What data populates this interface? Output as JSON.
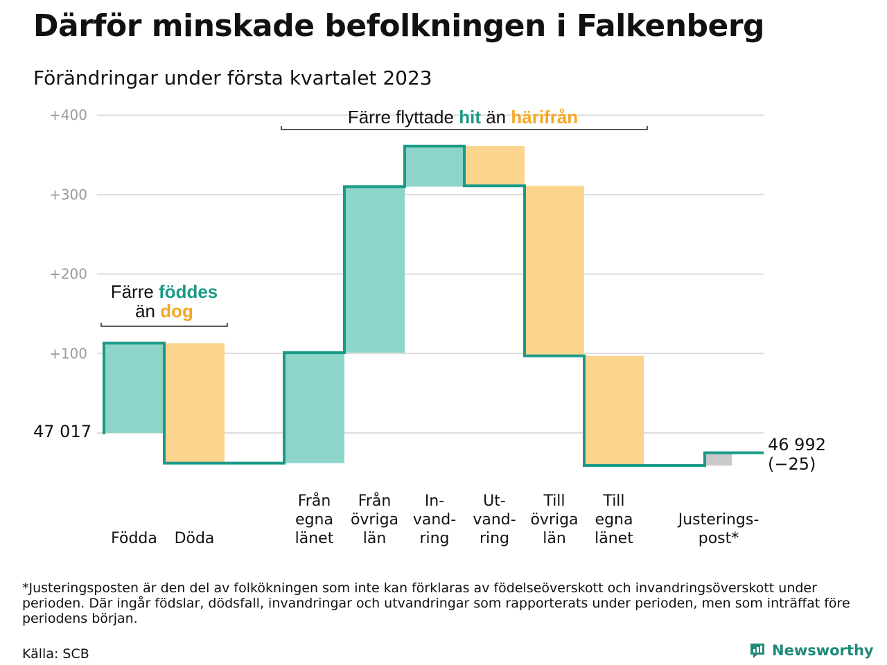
{
  "title": "Därför minskade befolkningen i Falkenberg",
  "subtitle": "Förändringar under första kvartalet 2023",
  "colors": {
    "teal": "#1a9a86",
    "teal_light": "#8dd5cb",
    "orange": "#f5a623",
    "orange_light": "#fbd58d",
    "gray": "#c9c9c9",
    "grid": "#dddddd"
  },
  "chart_data": {
    "type": "waterfall",
    "title": "Därför minskade befolkningen i Falkenberg",
    "subtitle": "Förändringar under första kvartalet 2023",
    "base_value": 47017,
    "ylim": [
      -70,
      410
    ],
    "yticks": [
      {
        "value": 100,
        "label": "+100"
      },
      {
        "value": 200,
        "label": "+200"
      },
      {
        "value": 300,
        "label": "+300"
      },
      {
        "value": 400,
        "label": "+400"
      }
    ],
    "start_label": "47 017",
    "end_label_line1": "46 992",
    "end_label_line2": "(−25)",
    "end_value": 46992,
    "net_change": -25,
    "steps": [
      {
        "name": "Födda",
        "lines": [
          "Födda"
        ],
        "delta": 113,
        "kind": "in"
      },
      {
        "name": "Döda",
        "lines": [
          "Döda"
        ],
        "delta": -151,
        "kind": "out"
      },
      {
        "name": "Från egna länet",
        "lines": [
          "Från",
          "egna",
          "länet"
        ],
        "delta": 139,
        "kind": "in"
      },
      {
        "name": "Från övriga län",
        "lines": [
          "Från",
          "övriga",
          "län"
        ],
        "delta": 209,
        "kind": "in"
      },
      {
        "name": "Invandring",
        "lines": [
          "In-",
          "vand-",
          "ring"
        ],
        "delta": 51,
        "kind": "in"
      },
      {
        "name": "Utvandring",
        "lines": [
          "Ut-",
          "vand-",
          "ring"
        ],
        "delta": -50,
        "kind": "out"
      },
      {
        "name": "Till övriga län",
        "lines": [
          "Till",
          "övriga",
          "län"
        ],
        "delta": -214,
        "kind": "out"
      },
      {
        "name": "Till egna länet",
        "lines": [
          "Till",
          "egna",
          "länet"
        ],
        "delta": -138,
        "kind": "out"
      },
      {
        "name": "Justeringspost",
        "lines": [
          "Justerings-",
          "post*"
        ],
        "delta": 16,
        "kind": "adjust"
      }
    ],
    "annotations": [
      {
        "lines": [
          [
            {
              "text": "Färre ",
              "tone": "plain"
            },
            {
              "text": "föddes",
              "tone": "teal"
            }
          ],
          [
            {
              "text": "än ",
              "tone": "plain"
            },
            {
              "text": "dog",
              "tone": "orange"
            }
          ]
        ]
      },
      {
        "lines": [
          [
            {
              "text": "Färre flyttade ",
              "tone": "plain"
            },
            {
              "text": "hit",
              "tone": "teal"
            },
            {
              "text": " än ",
              "tone": "plain"
            },
            {
              "text": "härifrån",
              "tone": "orange"
            }
          ]
        ]
      }
    ]
  },
  "footnote": "*Justeringsposten är den del av folkökningen som inte kan förklaras av födelseöverskott och invandringsöverskott under perioden. Där ingår födslar, dödsfall, invandringar och utvandringar som rapporterats under perioden, men som inträffat före periodens början.",
  "source": "Källa: SCB",
  "brand": "Newsworthy"
}
